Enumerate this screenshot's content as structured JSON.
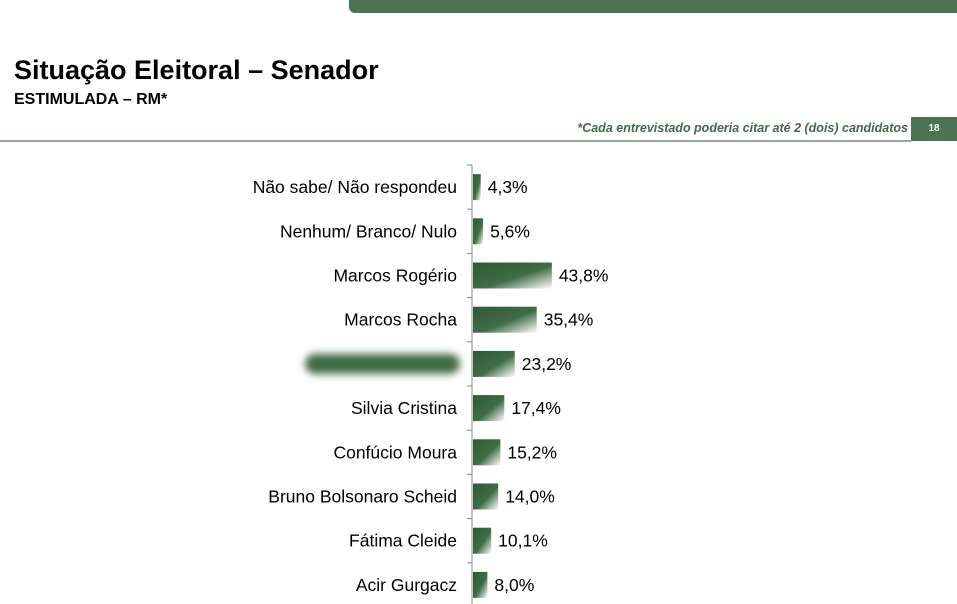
{
  "header": {
    "title": "Situação Eleitoral – Senador",
    "subtitle": "ESTIMULADA – RM*",
    "footnote": "*Cada entrevistado poderia citar até 2 (dois) candidatos",
    "page_number": "18"
  },
  "colors": {
    "accent": "#4a7550",
    "bar_dark": "#2f5a36",
    "bar_light": "#ffffff"
  },
  "chart_data": {
    "type": "bar",
    "orientation": "horizontal",
    "title": "",
    "xlabel": "",
    "ylabel": "",
    "categories": [
      "Não sabe/ Não respondeu",
      "Nenhum/ Branco/ Nulo",
      "Marcos Rogério",
      "Marcos Rocha",
      "",
      "Silvia Cristina",
      "Confúcio Moura",
      "Bruno Bolsonaro Scheid",
      "Fátima Cleide",
      "Acir Gurgacz"
    ],
    "values": [
      4.3,
      5.6,
      43.8,
      35.4,
      23.2,
      17.4,
      15.2,
      14.0,
      10.1,
      8.0
    ],
    "value_labels": [
      "4,3%",
      "5,6%",
      "43,8%",
      "35,4%",
      "23,2%",
      "17,4%",
      "15,2%",
      "14,0%",
      "10,1%",
      "8,0%"
    ],
    "redacted_category_index": 4,
    "unit": "%",
    "grid": false,
    "legend": "none"
  }
}
